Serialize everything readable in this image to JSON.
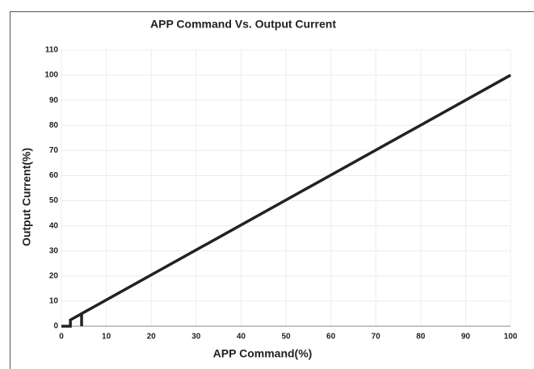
{
  "chart_data": {
    "type": "line",
    "title": "APP Command Vs. Output Current",
    "x_label": "APP Command(%)",
    "y_label": "Output Current(%)",
    "series": [
      {
        "name": "Output Current",
        "color": "#222222",
        "x": [
          0,
          2,
          2,
          4.5,
          4.5,
          4.5,
          100
        ],
        "values": [
          0,
          0,
          2.5,
          5,
          0,
          5,
          100
        ]
      }
    ],
    "xlim": [
      0,
      100
    ],
    "xticks": [
      0,
      10,
      20,
      30,
      40,
      50,
      60,
      70,
      80,
      90,
      100
    ],
    "ylim": [
      0,
      110
    ],
    "yticks": [
      0,
      10,
      20,
      30,
      40,
      50,
      60,
      70,
      80,
      90,
      100,
      110
    ],
    "grid": true
  }
}
